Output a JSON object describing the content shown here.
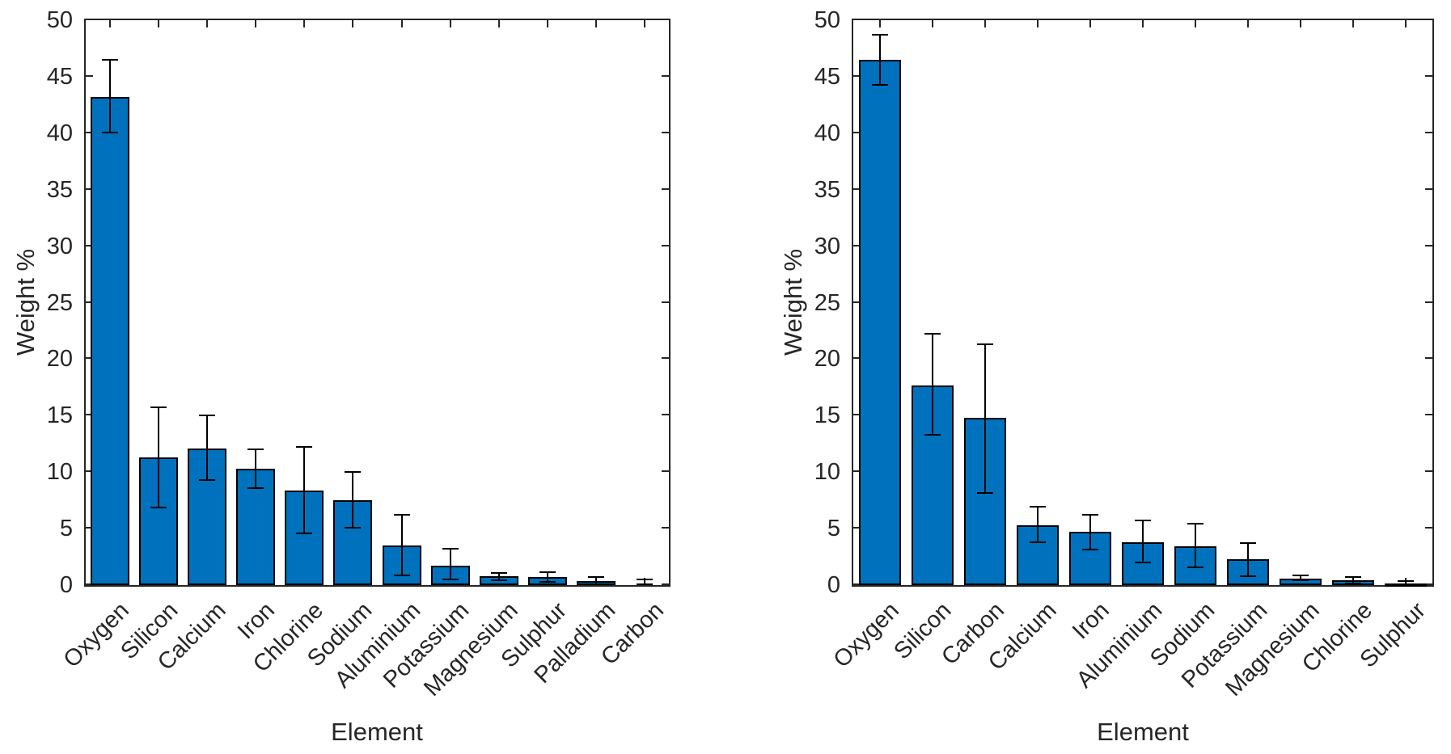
{
  "figure": {
    "background": "#FFFFFF",
    "bar_fill_color": "#0072BD",
    "bar_edge_color": "#000000",
    "error_bar_color": "#000000",
    "axis_color": "#262626",
    "panel_count": 2
  },
  "chart_data": [
    {
      "type": "bar",
      "panel": "left",
      "title": "",
      "xlabel": "Element",
      "ylabel": "Weight %",
      "ylim": [
        0,
        50
      ],
      "y_ticks": [
        0,
        5,
        10,
        15,
        20,
        25,
        30,
        35,
        40,
        45,
        50
      ],
      "grid": false,
      "legend": "none",
      "error_bars": true,
      "categories": [
        "Oxygen",
        "Silicon",
        "Calcium",
        "Iron",
        "Chlorine",
        "Sodium",
        "Aluminium",
        "Potassium",
        "Magnesium",
        "Sulphur",
        "Palladium",
        "Carbon"
      ],
      "values": [
        43.2,
        11.3,
        12.1,
        10.3,
        8.4,
        7.5,
        3.5,
        1.7,
        0.8,
        0.7,
        0.35,
        0.05
      ],
      "error_low": [
        40.0,
        6.8,
        9.2,
        8.5,
        4.5,
        5.0,
        0.8,
        0.4,
        0.35,
        0.2,
        0.0,
        0.0
      ],
      "error_high": [
        46.6,
        15.8,
        15.1,
        12.1,
        12.3,
        10.1,
        6.3,
        3.3,
        1.15,
        1.25,
        0.8,
        0.55
      ]
    },
    {
      "type": "bar",
      "panel": "right",
      "title": "",
      "xlabel": "Element",
      "ylabel": "Weight %",
      "ylim": [
        0,
        50
      ],
      "y_ticks": [
        0,
        5,
        10,
        15,
        20,
        25,
        30,
        35,
        40,
        45,
        50
      ],
      "grid": false,
      "legend": "none",
      "error_bars": true,
      "categories": [
        "Oxygen",
        "Silicon",
        "Carbon",
        "Calcium",
        "Iron",
        "Aluminium",
        "Sodium",
        "Potassium",
        "Magnesium",
        "Chlorine",
        "Sulphur"
      ],
      "values": [
        46.5,
        17.7,
        14.8,
        5.3,
        4.7,
        3.8,
        3.4,
        2.3,
        0.6,
        0.45,
        0.15
      ],
      "error_low": [
        44.2,
        13.2,
        8.1,
        3.75,
        3.1,
        1.9,
        1.5,
        0.7,
        0.35,
        0.1,
        0.0
      ],
      "error_high": [
        48.8,
        22.3,
        21.4,
        7.0,
        6.3,
        5.8,
        5.5,
        3.8,
        0.9,
        0.8,
        0.45
      ]
    }
  ]
}
